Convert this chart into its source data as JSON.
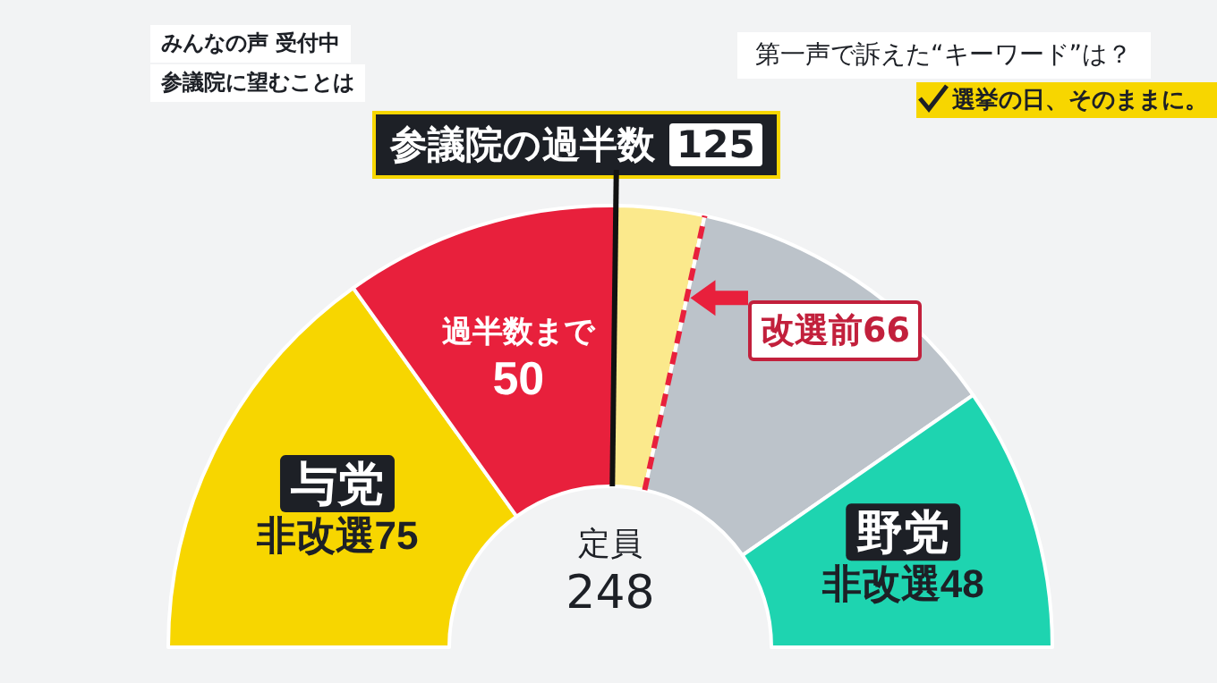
{
  "chart_data": {
    "type": "donut",
    "title": "参議院の過半数 125",
    "categories": [
      "与党",
      "過半数まで",
      null,
      null,
      "野党"
    ],
    "values": [
      75,
      50,
      16,
      59,
      48
    ],
    "colors": [
      "#f7d600",
      "#e8203c",
      "#fbe98c",
      "#bcc3ca",
      "#1ed4b0"
    ],
    "value_labels": [
      "非改選75",
      "50",
      null,
      null,
      "非改選48"
    ],
    "annotations": [
      "みんなの声 受付中",
      "参議院に望むことは",
      "第一声で訴えた“キーワード”は？",
      "選挙の日、そのままに。",
      "改選前66",
      "定員 248"
    ]
  }
}
